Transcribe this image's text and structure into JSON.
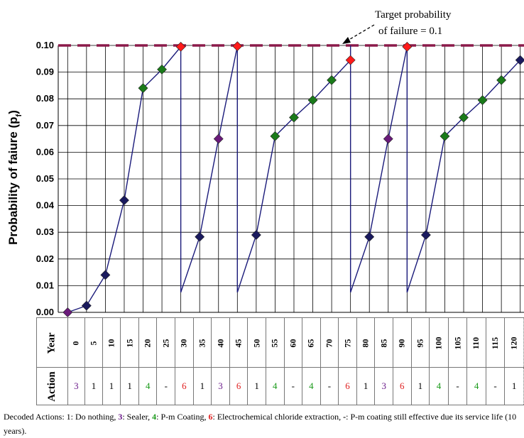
{
  "chart_data": {
    "type": "line",
    "ylabel": "Probability of faiure (pf)",
    "ylabel_main": "Probability of faiure (p",
    "ylabel_sub": "f",
    "ylabel_end": ")",
    "ylim": [
      0,
      0.1
    ],
    "yticks": [
      "0.00",
      "0.01",
      "0.02",
      "0.03",
      "0.04",
      "0.05",
      "0.06",
      "0.07",
      "0.08",
      "0.09",
      "0.10"
    ],
    "xlim": [
      -2.5,
      121
    ],
    "grid": "horizontal and vertical",
    "annotation_line1": "Target probability",
    "annotation_line2": "of failure = 0.1",
    "target": 0.1,
    "target_color": "#8b1a4a",
    "line_color": "#1a1a7a",
    "segments": [
      [
        [
          0,
          0.0
        ],
        [
          5,
          0.0025
        ],
        [
          10,
          0.014
        ],
        [
          15,
          0.042
        ],
        [
          20,
          0.084
        ],
        [
          25,
          0.091
        ],
        [
          30,
          0.0995
        ]
      ],
      [
        [
          30,
          0.0075
        ],
        [
          35,
          0.0283
        ],
        [
          40,
          0.065
        ],
        [
          45,
          0.0997
        ]
      ],
      [
        [
          45,
          0.0075
        ],
        [
          50,
          0.029
        ],
        [
          55,
          0.066
        ],
        [
          60,
          0.073
        ],
        [
          65,
          0.0795
        ],
        [
          70,
          0.087
        ],
        [
          75,
          0.0945
        ]
      ],
      [
        [
          75,
          0.0075
        ],
        [
          80,
          0.0283
        ],
        [
          85,
          0.065
        ],
        [
          90,
          0.0995
        ]
      ],
      [
        [
          90,
          0.0075
        ],
        [
          95,
          0.029
        ],
        [
          100,
          0.066
        ],
        [
          105,
          0.073
        ],
        [
          110,
          0.0795
        ],
        [
          115,
          0.087
        ],
        [
          120,
          0.0945
        ]
      ]
    ],
    "verticals": [
      30,
      45,
      75,
      90
    ],
    "markers": [
      {
        "x": 0,
        "y": 0.0,
        "action": "3"
      },
      {
        "x": 5,
        "y": 0.0025,
        "action": "1"
      },
      {
        "x": 10,
        "y": 0.014,
        "action": "1"
      },
      {
        "x": 15,
        "y": 0.042,
        "action": "1"
      },
      {
        "x": 20,
        "y": 0.084,
        "action": "4"
      },
      {
        "x": 25,
        "y": 0.091,
        "action": "-"
      },
      {
        "x": 30,
        "y": 0.0995,
        "action": "6"
      },
      {
        "x": 35,
        "y": 0.0283,
        "action": "1"
      },
      {
        "x": 40,
        "y": 0.065,
        "action": "3"
      },
      {
        "x": 45,
        "y": 0.0997,
        "action": "6"
      },
      {
        "x": 50,
        "y": 0.029,
        "action": "1"
      },
      {
        "x": 55,
        "y": 0.066,
        "action": "4"
      },
      {
        "x": 60,
        "y": 0.073,
        "action": "-"
      },
      {
        "x": 65,
        "y": 0.0795,
        "action": "4"
      },
      {
        "x": 70,
        "y": 0.087,
        "action": "-"
      },
      {
        "x": 75,
        "y": 0.0945,
        "action": "6"
      },
      {
        "x": 80,
        "y": 0.0283,
        "action": "1"
      },
      {
        "x": 85,
        "y": 0.065,
        "action": "3"
      },
      {
        "x": 90,
        "y": 0.0995,
        "action": "6"
      },
      {
        "x": 95,
        "y": 0.029,
        "action": "1"
      },
      {
        "x": 100,
        "y": 0.066,
        "action": "4"
      },
      {
        "x": 105,
        "y": 0.073,
        "action": "-"
      },
      {
        "x": 110,
        "y": 0.0795,
        "action": "4"
      },
      {
        "x": 115,
        "y": 0.087,
        "action": "-"
      },
      {
        "x": 120,
        "y": 0.0945,
        "action": "1"
      }
    ],
    "action_colors": {
      "1": "#1a1a5e",
      "3": "#6a1a7a",
      "4": "#1a7a1a",
      "-": "#1a7a1a",
      "6": "#ff1a1a"
    }
  },
  "table": {
    "year_header": "Year",
    "action_header": "Action",
    "years": [
      "0",
      "5",
      "10",
      "15",
      "20",
      "25",
      "30",
      "35",
      "40",
      "45",
      "50",
      "55",
      "60",
      "65",
      "70",
      "75",
      "80",
      "85",
      "90",
      "95",
      "100",
      "105",
      "110",
      "115",
      "120"
    ],
    "actions": [
      "3",
      "1",
      "1",
      "1",
      "4",
      "-",
      "6",
      "1",
      "3",
      "6",
      "1",
      "4",
      "-",
      "4",
      "-",
      "6",
      "1",
      "3",
      "6",
      "1",
      "4",
      "-",
      "4",
      "-",
      "1"
    ],
    "text_colors": {
      "1": "#000000",
      "3": "#6a1a8a",
      "4": "#1a9a1a",
      "6": "#e02020",
      "-": "#000000"
    }
  },
  "footnote": {
    "prefix": "Decoded Actions: ",
    "a1_num": "1",
    "a1_text": ": Do nothing, ",
    "a3_num": "3",
    "a3_text": ": Sealer, ",
    "a4_num": "4",
    "a4_text": ": P-m Coating, ",
    "a6_num": "6",
    "a6_text": ": Electrochemical chloride extraction, ",
    "dash_num": "-",
    "dash_text": ": P-m coating still  effective due its service life (10 years)."
  }
}
